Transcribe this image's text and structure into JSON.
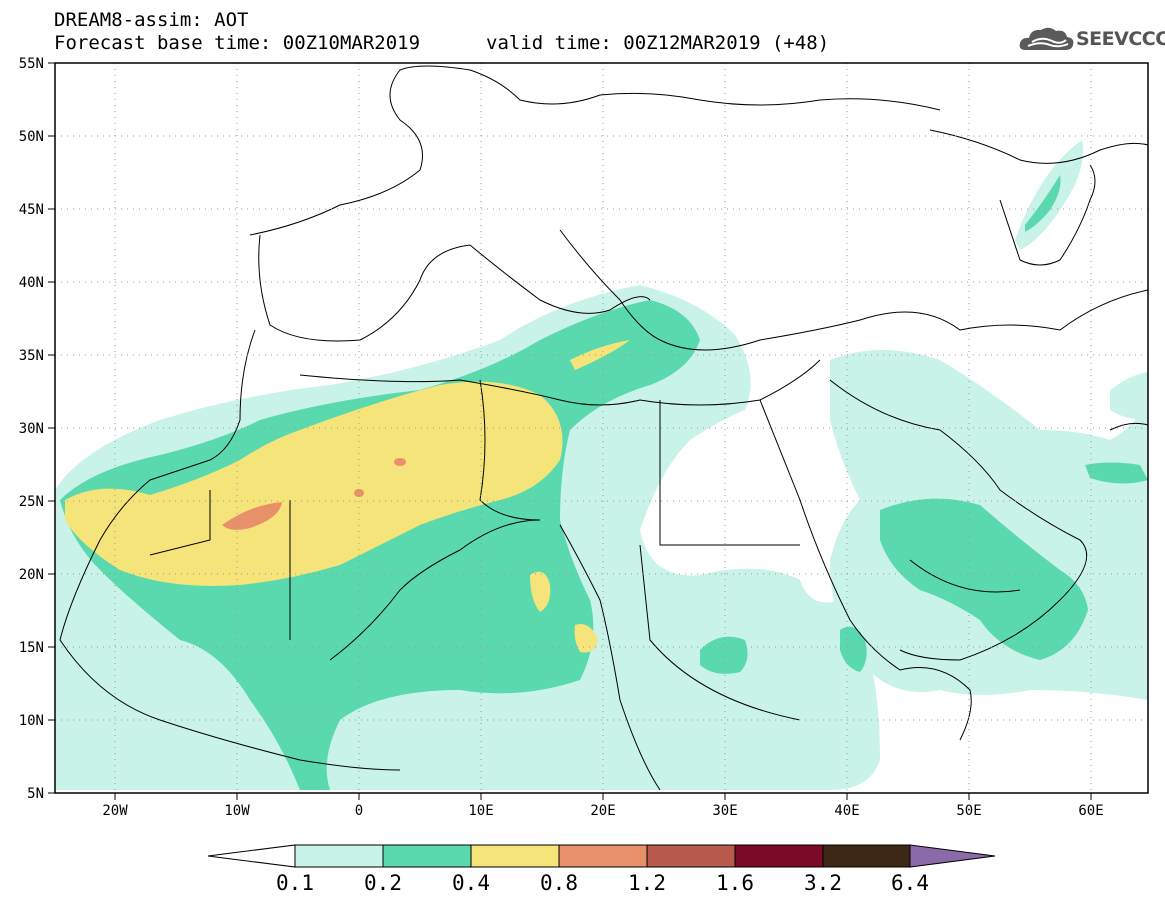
{
  "header": {
    "title_line1": "DREAM8-assim: AOT",
    "title_line2a": "Forecast base time: 00Z10MAR2019",
    "title_line2b": "valid time: 00Z12MAR2019 (+48)"
  },
  "logo": {
    "text": "SEEVCCC",
    "icon": "cloud-logo-icon"
  },
  "map": {
    "lat_labels": [
      "55N",
      "50N",
      "45N",
      "40N",
      "35N",
      "30N",
      "25N",
      "20N",
      "15N",
      "10N",
      "5N"
    ],
    "lon_labels": [
      "20W",
      "10W",
      "0",
      "10E",
      "20E",
      "30E",
      "40E",
      "50E",
      "60E"
    ],
    "grid": "dotted"
  },
  "colorbar": {
    "labels": [
      "0.1",
      "0.2",
      "0.4",
      "0.8",
      "1.2",
      "1.6",
      "3.2",
      "6.4"
    ],
    "colors": [
      "#ffffff",
      "#c9f2e9",
      "#5ad9ae",
      "#f5e47a",
      "#e8906a",
      "#b85a4a",
      "#7a0a28",
      "#3c2814",
      "#8a6aa8"
    ]
  }
}
